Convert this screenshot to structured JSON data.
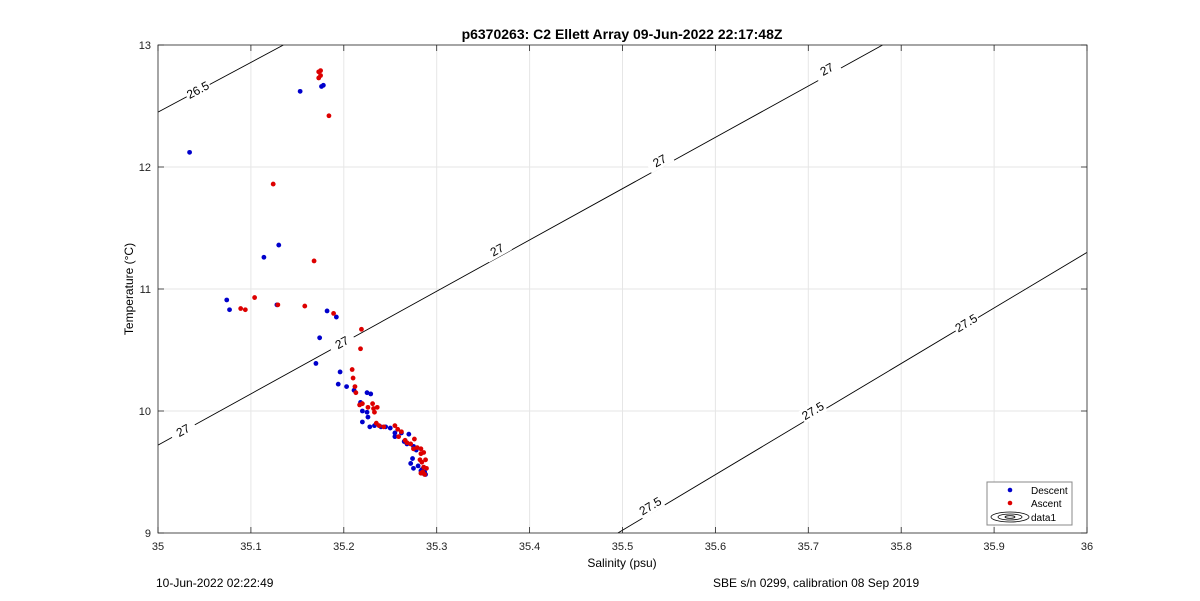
{
  "chart_data": {
    "type": "scatter",
    "title": "p6370263: C2 Ellett Array 09-Jun-2022 22:17:48Z",
    "xlabel": "Salinity (psu)",
    "ylabel": "Temperature (°C)",
    "xlim": [
      35,
      36
    ],
    "ylim": [
      9,
      13
    ],
    "xticks": [
      "35",
      "35.1",
      "35.2",
      "35.3",
      "35.4",
      "35.5",
      "35.6",
      "35.7",
      "35.8",
      "35.9",
      "36"
    ],
    "yticks": [
      "9",
      "10",
      "11",
      "12",
      "13"
    ],
    "grid": true,
    "legend_position": "bottom-right",
    "series": [
      {
        "name": "Descent",
        "color": "#0000cc",
        "points": [
          [
            35.034,
            12.12
          ],
          [
            35.153,
            12.62
          ],
          [
            35.176,
            12.66
          ],
          [
            35.178,
            12.67
          ],
          [
            35.114,
            11.26
          ],
          [
            35.13,
            11.36
          ],
          [
            35.074,
            10.91
          ],
          [
            35.077,
            10.83
          ],
          [
            35.128,
            10.87
          ],
          [
            35.182,
            10.82
          ],
          [
            35.192,
            10.77
          ],
          [
            35.174,
            10.6
          ],
          [
            35.17,
            10.39
          ],
          [
            35.196,
            10.32
          ],
          [
            35.194,
            10.22
          ],
          [
            35.203,
            10.2
          ],
          [
            35.211,
            10.17
          ],
          [
            35.218,
            10.07
          ],
          [
            35.22,
            10.0
          ],
          [
            35.225,
            10.15
          ],
          [
            35.229,
            10.14
          ],
          [
            35.225,
            9.99
          ],
          [
            35.226,
            9.95
          ],
          [
            35.22,
            9.91
          ],
          [
            35.228,
            9.87
          ],
          [
            35.233,
            9.88
          ],
          [
            35.24,
            9.87
          ],
          [
            35.245,
            9.87
          ],
          [
            35.25,
            9.86
          ],
          [
            35.255,
            9.82
          ],
          [
            35.255,
            9.79
          ],
          [
            35.262,
            9.82
          ],
          [
            35.265,
            9.75
          ],
          [
            35.27,
            9.81
          ],
          [
            35.268,
            9.73
          ],
          [
            35.275,
            9.71
          ],
          [
            35.278,
            9.68
          ],
          [
            35.274,
            9.61
          ],
          [
            35.272,
            9.57
          ],
          [
            35.275,
            9.53
          ],
          [
            35.28,
            9.55
          ],
          [
            35.283,
            9.51
          ],
          [
            35.285,
            9.49
          ],
          [
            35.288,
            9.48
          ],
          [
            35.284,
            9.52
          ],
          [
            35.287,
            9.5
          ]
        ]
      },
      {
        "name": "Ascent",
        "color": "#dd0000",
        "points": [
          [
            35.173,
            12.78
          ],
          [
            35.175,
            12.79
          ],
          [
            35.175,
            12.75
          ],
          [
            35.173,
            12.73
          ],
          [
            35.184,
            12.42
          ],
          [
            35.124,
            11.86
          ],
          [
            35.168,
            11.23
          ],
          [
            35.104,
            10.93
          ],
          [
            35.129,
            10.87
          ],
          [
            35.158,
            10.86
          ],
          [
            35.089,
            10.84
          ],
          [
            35.094,
            10.83
          ],
          [
            35.189,
            10.8
          ],
          [
            35.219,
            10.67
          ],
          [
            35.218,
            10.51
          ],
          [
            35.209,
            10.34
          ],
          [
            35.21,
            10.27
          ],
          [
            35.212,
            10.2
          ],
          [
            35.213,
            10.15
          ],
          [
            35.217,
            10.05
          ],
          [
            35.22,
            10.06
          ],
          [
            35.226,
            10.03
          ],
          [
            35.231,
            10.06
          ],
          [
            35.232,
            10.02
          ],
          [
            35.236,
            10.03
          ],
          [
            35.233,
            9.99
          ],
          [
            35.235,
            9.9
          ],
          [
            35.238,
            9.88
          ],
          [
            35.243,
            9.87
          ],
          [
            35.255,
            9.88
          ],
          [
            35.258,
            9.85
          ],
          [
            35.262,
            9.83
          ],
          [
            35.259,
            9.79
          ],
          [
            35.266,
            9.76
          ],
          [
            35.268,
            9.74
          ],
          [
            35.272,
            9.73
          ],
          [
            35.276,
            9.77
          ],
          [
            35.275,
            9.69
          ],
          [
            35.279,
            9.7
          ],
          [
            35.283,
            9.69
          ],
          [
            35.283,
            9.65
          ],
          [
            35.286,
            9.66
          ],
          [
            35.288,
            9.6
          ],
          [
            35.284,
            9.58
          ],
          [
            35.286,
            9.54
          ],
          [
            35.289,
            9.53
          ],
          [
            35.285,
            9.5
          ],
          [
            35.287,
            9.48
          ],
          [
            35.283,
            9.49
          ],
          [
            35.282,
            9.6
          ]
        ]
      }
    ],
    "legend_entries": [
      "Descent",
      "Ascent",
      "data1"
    ],
    "isopycnals": [
      {
        "label": "26.5",
        "from": [
          35.0,
          12.45
        ],
        "to": [
          35.135,
          13.0
        ],
        "labels_at": [
          [
            35.043,
            12.63
          ]
        ]
      },
      {
        "label": "27",
        "from": [
          35.0,
          9.72
        ],
        "to": [
          35.78,
          13.0
        ],
        "labels_at": [
          [
            35.027,
            9.84
          ],
          [
            35.198,
            10.56
          ],
          [
            35.365,
            11.32
          ],
          [
            35.54,
            12.05
          ],
          [
            35.72,
            12.8
          ]
        ]
      },
      {
        "label": "27.5",
        "from": [
          35.495,
          9.0
        ],
        "to": [
          36.0,
          11.3
        ],
        "labels_at": [
          [
            35.53,
            9.22
          ],
          [
            35.705,
            10.0
          ],
          [
            35.87,
            10.72
          ]
        ]
      }
    ]
  },
  "footer": {
    "left": "10-Jun-2022 02:22:49",
    "right": "SBE s/n 0299, calibration 08 Sep 2019"
  }
}
